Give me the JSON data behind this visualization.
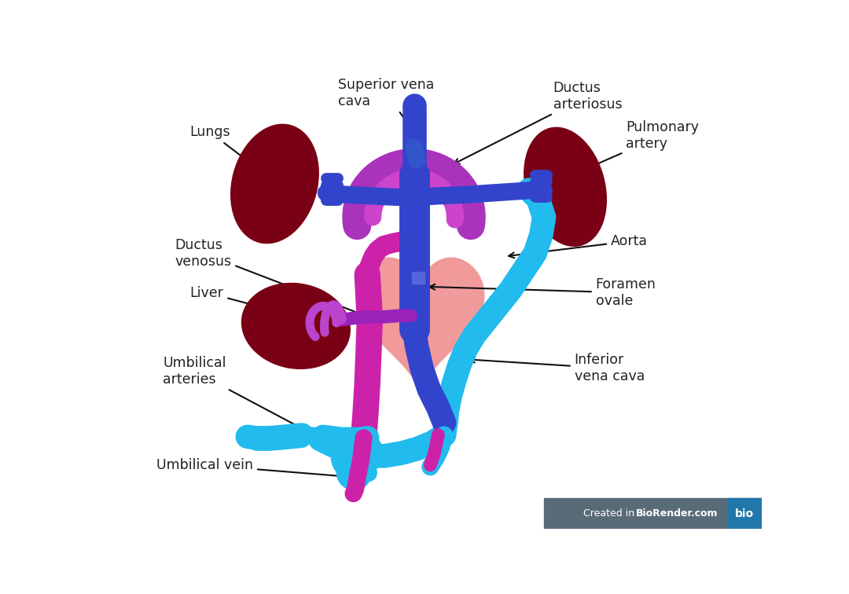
{
  "background_color": "#ffffff",
  "labels": {
    "superior_vena_cava": "Superior vena\ncava",
    "ductus_arteriosus": "Ductus\narteriosus",
    "lungs": "Lungs",
    "pulmonary_artery": "Pulmonary\nartery",
    "ductus_venosus": "Ductus\nvenosus",
    "aorta": "Aorta",
    "liver": "Liver",
    "foramen_ovale": "Foramen\novale",
    "umbilical_arteries": "Umbilical\narteries",
    "inferior_vena_cava": "Inferior\nvena cava",
    "umbilical_vein": "Umbilical vein"
  },
  "colors": {
    "dark_blue": "#3344CC",
    "medium_blue": "#4455DD",
    "cyan_blue": "#22BBEE",
    "purple": "#9933BB",
    "magenta": "#CC22AA",
    "pink_heart": "#EE7777",
    "dark_red": "#7A0015",
    "salmon": "#EE9999",
    "text_color": "#222222"
  },
  "biorender_bg": "#5A6B78",
  "biorender_blue": "#2277AA"
}
